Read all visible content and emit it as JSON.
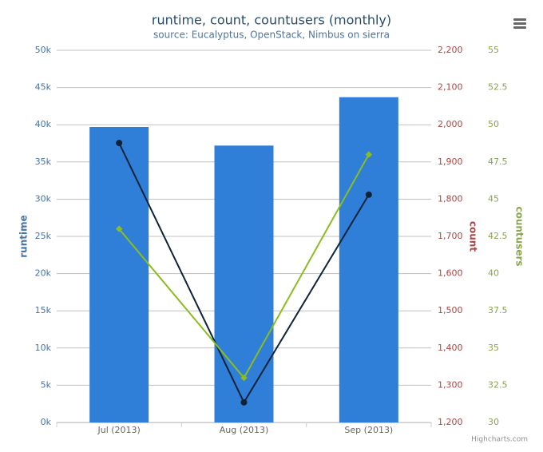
{
  "chart_data": {
    "type": "combo",
    "title": "runtime, count, countusers (monthly)",
    "subtitle": "source: Eucalyptus, OpenStack, Nimbus on sierra",
    "credits": "Highcharts.com",
    "categories": [
      "Jul (2013)",
      "Aug (2013)",
      "Sep (2013)"
    ],
    "ylabel": "runtime",
    "y2label": "count",
    "y3label": "countusers",
    "ylim": [
      0,
      50000
    ],
    "yticks": [
      {
        "value": 0,
        "label": "0k"
      },
      {
        "value": 5000,
        "label": "5k"
      },
      {
        "value": 10000,
        "label": "10k"
      },
      {
        "value": 15000,
        "label": "15k"
      },
      {
        "value": 20000,
        "label": "20k"
      },
      {
        "value": 25000,
        "label": "25k"
      },
      {
        "value": 30000,
        "label": "30k"
      },
      {
        "value": 35000,
        "label": "35k"
      },
      {
        "value": 40000,
        "label": "40k"
      },
      {
        "value": 45000,
        "label": "45k"
      },
      {
        "value": 50000,
        "label": "50k"
      }
    ],
    "y2lim": [
      1200,
      2200
    ],
    "y2ticks": [
      {
        "value": 1200,
        "label": "1,200"
      },
      {
        "value": 1300,
        "label": "1,300"
      },
      {
        "value": 1400,
        "label": "1,400"
      },
      {
        "value": 1500,
        "label": "1,500"
      },
      {
        "value": 1600,
        "label": "1,600"
      },
      {
        "value": 1700,
        "label": "1,700"
      },
      {
        "value": 1800,
        "label": "1,800"
      },
      {
        "value": 1900,
        "label": "1,900"
      },
      {
        "value": 2000,
        "label": "2,000"
      },
      {
        "value": 2100,
        "label": "2,100"
      },
      {
        "value": 2200,
        "label": "2,200"
      }
    ],
    "y3lim": [
      30,
      55
    ],
    "y3ticks": [
      30,
      32.5,
      35,
      37.5,
      40,
      42.5,
      45,
      47.5,
      50,
      52.5,
      55
    ],
    "grid": true,
    "series": [
      {
        "name": "runtime",
        "type": "bar",
        "color": "#2f7ed8",
        "axis": "y",
        "values": [
          39700,
          37200,
          43700
        ]
      },
      {
        "name": "count",
        "type": "line",
        "color": "#0d233a",
        "axis": "y2",
        "values": [
          1951,
          1254,
          1812
        ]
      },
      {
        "name": "countusers",
        "type": "line",
        "color": "#8bbc21",
        "axis": "y3",
        "values": [
          43,
          33,
          48
        ]
      }
    ]
  }
}
